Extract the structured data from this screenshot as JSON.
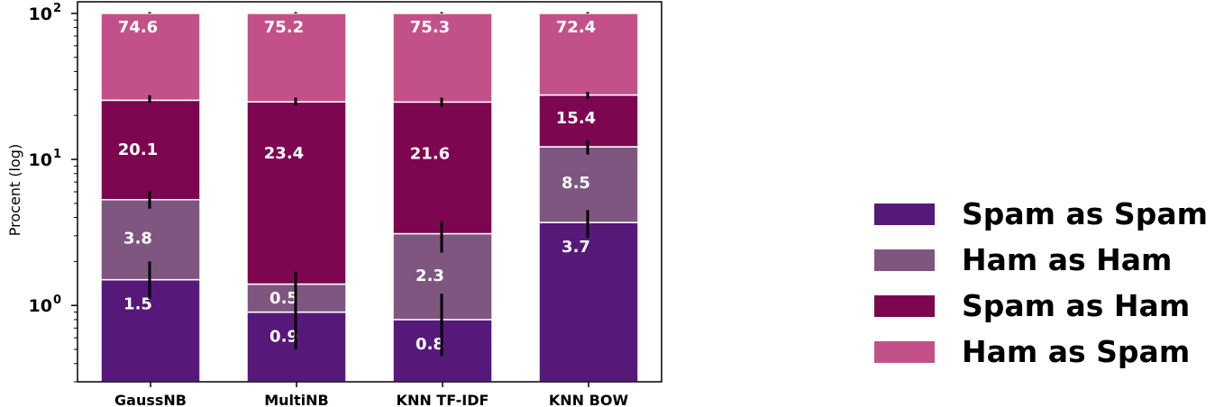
{
  "chart_data": {
    "type": "bar",
    "stacked": true,
    "yscale": "log",
    "ylabel": "Procent (log)",
    "ylim": [
      0.3,
      120
    ],
    "yticks": [
      {
        "value": 1,
        "base": "10",
        "exp": "0"
      },
      {
        "value": 10,
        "base": "10",
        "exp": "1"
      },
      {
        "value": 100,
        "base": "10",
        "exp": "2"
      }
    ],
    "categories": [
      "GaussNB",
      "MultiNB",
      "KNN TF-IDF",
      "KNN BOW"
    ],
    "series": [
      {
        "name": "Spam as Spam",
        "color": "#56197a",
        "values": [
          1.5,
          0.9,
          0.8,
          3.7
        ],
        "labels": [
          "1.5",
          "0.9",
          "0.8",
          "3.7"
        ]
      },
      {
        "name": "Ham as Ham",
        "color": "#7e5680",
        "values": [
          3.8,
          0.5,
          2.3,
          8.5
        ],
        "labels": [
          "3.8",
          "0.5",
          "2.3",
          "8.5"
        ]
      },
      {
        "name": "Spam as Ham",
        "color": "#7d0650",
        "values": [
          20.1,
          23.4,
          21.6,
          15.4
        ],
        "labels": [
          "20.1",
          "23.4",
          "21.6",
          "15.4"
        ]
      },
      {
        "name": "Ham as Spam",
        "color": "#c35189",
        "values": [
          74.6,
          75.2,
          75.3,
          72.4
        ],
        "labels": [
          "74.6",
          "75.2",
          "75.3",
          "72.4"
        ]
      }
    ],
    "error_bars": [
      [
        [
          1.1,
          2.0
        ],
        [
          0.5,
          1.3
        ],
        [
          0.45,
          1.2
        ],
        [
          2.9,
          4.5
        ]
      ],
      [
        [
          4.6,
          6.1
        ],
        [
          1.1,
          1.7
        ],
        [
          2.3,
          3.8
        ],
        [
          10.8,
          13.5
        ]
      ],
      [
        [
          24.5,
          27.5
        ],
        [
          23.5,
          26.5
        ],
        [
          23.0,
          26.5
        ],
        [
          26.0,
          29.0
        ]
      ],
      [
        [
          100,
          102
        ],
        [
          100,
          102
        ],
        [
          100,
          102
        ],
        [
          100,
          102
        ]
      ]
    ],
    "legend": {
      "position": "right",
      "entries": [
        "Spam as Spam",
        "Ham as Ham",
        "Spam as Ham",
        "Ham as Spam"
      ]
    },
    "grid": false
  }
}
